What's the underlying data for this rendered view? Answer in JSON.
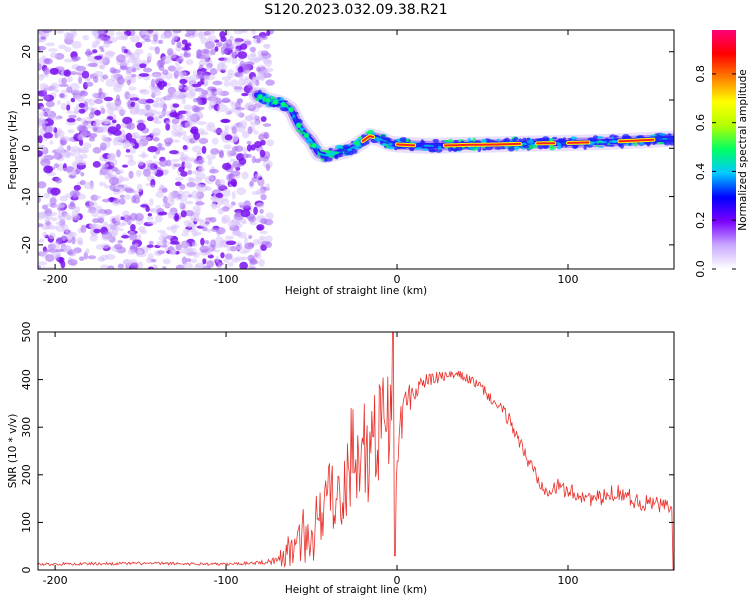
{
  "figure_title": "S120.2023.032.09.38.R21",
  "chart_data": [
    {
      "type": "heatmap",
      "xlabel": "Height of straight line (km)",
      "ylabel": "Frequency (Hz)",
      "xlim": [
        -210,
        162
      ],
      "ylim": [
        -25,
        24.5
      ],
      "xticks": [
        -200,
        -100,
        0,
        100
      ],
      "yticks": [
        -20,
        -10,
        0,
        10,
        20
      ],
      "colorbar": {
        "label": "Normalized spectral amplitude",
        "ticks": [
          0.0,
          0.2,
          0.4,
          0.6,
          0.8
        ],
        "range": [
          0,
          0.98
        ],
        "colormap": [
          "#ffffff",
          "#c9a8ff",
          "#7a00ff",
          "#0000ff",
          "#00c8ff",
          "#00ff64",
          "#b4ff00",
          "#ffff00",
          "#ff8000",
          "#ff0000",
          "#ff0078"
        ]
      },
      "noise_region_x": [
        -210,
        -80
      ],
      "ridge": {
        "x": [
          -82,
          -76,
          -70,
          -66,
          -62,
          -58,
          -54,
          -50,
          -46,
          -42,
          -36,
          -30,
          -24,
          -20,
          -16,
          -10,
          -4,
          0,
          10,
          20,
          40,
          60,
          80,
          100,
          120,
          140,
          162
        ],
        "y": [
          11,
          10,
          9.5,
          9,
          8,
          5,
          3,
          1.5,
          -1,
          -1.5,
          -1,
          -0.5,
          0.5,
          1.5,
          2.5,
          2,
          1,
          0.8,
          0.6,
          0.5,
          0.7,
          0.8,
          1,
          1.1,
          1.3,
          1.6,
          2
        ]
      },
      "strong_segments_x": [
        [
          -20,
          -14
        ],
        [
          0,
          10
        ],
        [
          28,
          72
        ],
        [
          82,
          92
        ],
        [
          100,
          112
        ],
        [
          130,
          150
        ]
      ]
    },
    {
      "type": "line",
      "xlabel": "Height of straight line (km)",
      "ylabel": "SNR (10 * v/v)",
      "xlim": [
        -210,
        162
      ],
      "ylim": [
        0,
        500
      ],
      "xticks": [
        -200,
        -100,
        0,
        100
      ],
      "yticks": [
        0,
        100,
        200,
        300,
        400,
        500
      ],
      "color": "#e8302a",
      "series": [
        {
          "x": [
            -210,
            -180,
            -150,
            -120,
            -100,
            -90,
            -80,
            -70,
            -62,
            -55,
            -50,
            -45,
            -40,
            -35,
            -30,
            -25,
            -20,
            -15,
            -10,
            -6,
            -3,
            -1,
            2,
            5,
            10,
            15,
            20,
            25,
            30,
            35,
            40,
            45,
            50,
            55,
            60,
            65,
            70,
            75,
            80,
            85,
            90,
            95,
            100,
            105,
            110,
            115,
            120,
            125,
            130,
            135,
            140,
            145,
            150,
            155,
            160
          ],
          "y": [
            12,
            13,
            14,
            13,
            12,
            14,
            16,
            20,
            35,
            55,
            70,
            110,
            140,
            175,
            195,
            205,
            225,
            260,
            300,
            330,
            310,
            150,
            320,
            350,
            375,
            395,
            400,
            405,
            408,
            410,
            405,
            395,
            380,
            360,
            340,
            320,
            285,
            240,
            210,
            180,
            170,
            175,
            165,
            160,
            155,
            150,
            150,
            160,
            165,
            155,
            145,
            140,
            140,
            135,
            130
          ],
          "noise": [
            3,
            3,
            3,
            3,
            3,
            3,
            4,
            10,
            35,
            55,
            60,
            80,
            90,
            100,
            100,
            90,
            100,
            110,
            120,
            110,
            100,
            0,
            60,
            35,
            25,
            18,
            14,
            12,
            10,
            10,
            10,
            10,
            12,
            12,
            14,
            15,
            18,
            18,
            18,
            20,
            18,
            18,
            18,
            18,
            18,
            18,
            18,
            18,
            18,
            18,
            18,
            18,
            18,
            18,
            18
          ]
        }
      ]
    }
  ]
}
